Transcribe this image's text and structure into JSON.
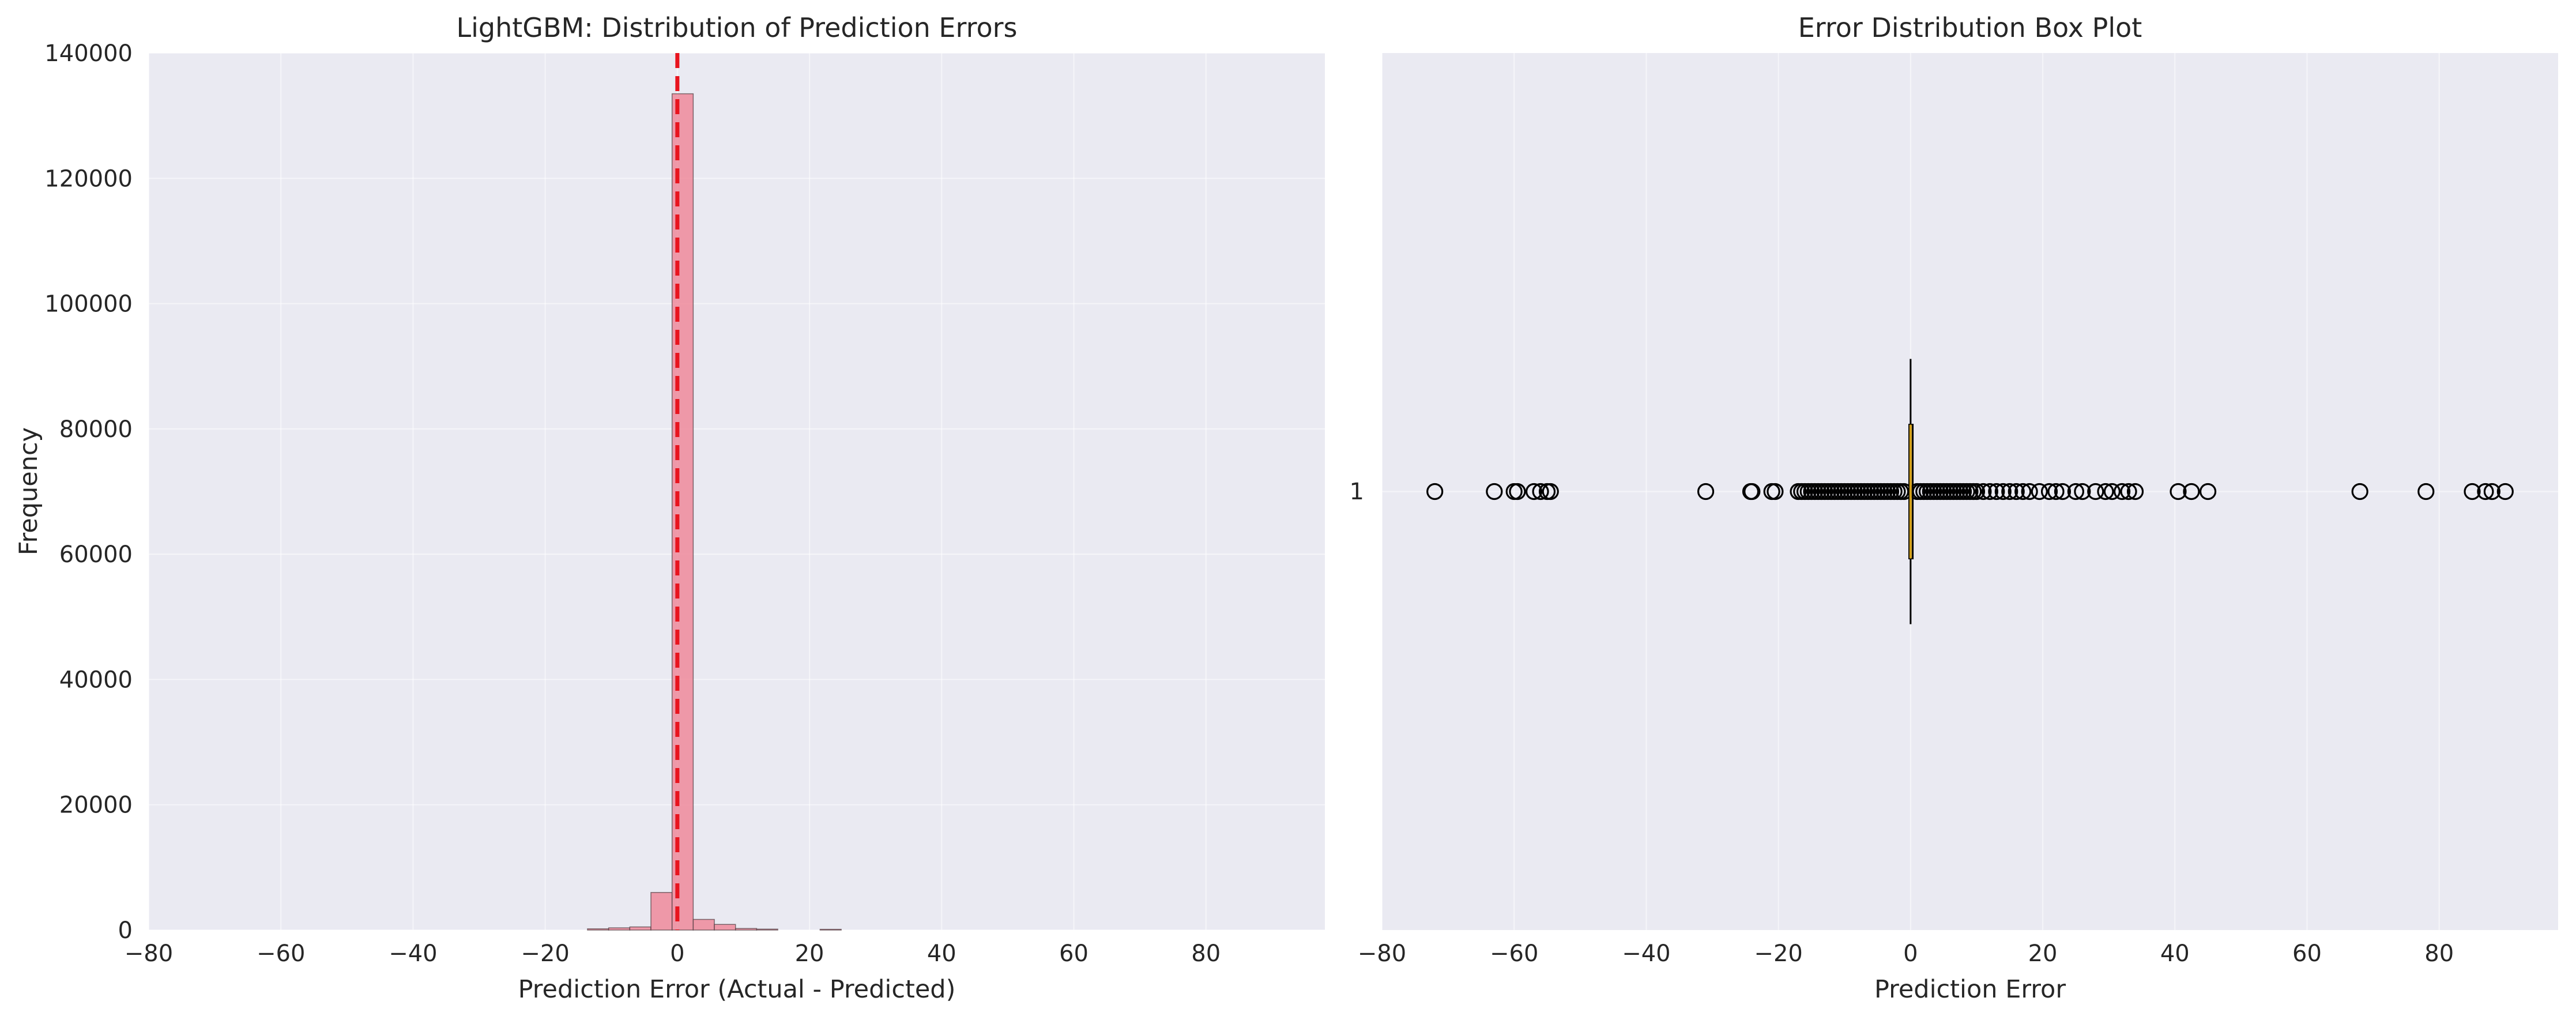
{
  "colors": {
    "panel_bg": "#eaeaf2",
    "bar_fill": "#ef8a9b",
    "zero_line": "#e8141e",
    "median_line": "#d4a017"
  },
  "chart_data": [
    {
      "type": "bar",
      "subtype": "histogram",
      "title": "LightGBM: Distribution of Prediction Errors",
      "xlabel": "Prediction Error (Actual - Predicted)",
      "ylabel": "Frequency",
      "xlim": [
        -80,
        98
      ],
      "ylim": [
        0,
        140000
      ],
      "xticks": [
        "−80",
        "−60",
        "−40",
        "−20",
        "0",
        "20",
        "40",
        "60",
        "80"
      ],
      "xtick_values": [
        -80,
        -60,
        -40,
        -20,
        0,
        20,
        40,
        60,
        80
      ],
      "yticks": [
        "0",
        "20000",
        "40000",
        "60000",
        "80000",
        "100000",
        "120000",
        "140000"
      ],
      "ytick_values": [
        0,
        20000,
        40000,
        60000,
        80000,
        100000,
        120000,
        140000
      ],
      "bins": [
        {
          "x0": -13.6,
          "x1": -10.4,
          "count": 200
        },
        {
          "x0": -10.4,
          "x1": -7.2,
          "count": 350
        },
        {
          "x0": -7.2,
          "x1": -4.0,
          "count": 500
        },
        {
          "x0": -4.0,
          "x1": -0.8,
          "count": 6000
        },
        {
          "x0": -0.8,
          "x1": 2.4,
          "count": 133500
        },
        {
          "x0": 2.4,
          "x1": 5.6,
          "count": 1700
        },
        {
          "x0": 5.6,
          "x1": 8.8,
          "count": 900
        },
        {
          "x0": 8.8,
          "x1": 12.0,
          "count": 250
        },
        {
          "x0": 12.0,
          "x1": 15.2,
          "count": 150
        },
        {
          "x0": 21.6,
          "x1": 24.8,
          "count": 120
        }
      ],
      "reference_line": {
        "x": 0,
        "style": "dashed"
      },
      "grid": true
    },
    {
      "type": "boxplot",
      "orientation": "horizontal",
      "title": "Error Distribution Box Plot",
      "xlabel": "Prediction Error",
      "ylabel": "",
      "xlim": [
        -80,
        98
      ],
      "xticks": [
        "−80",
        "−60",
        "−40",
        "−20",
        "0",
        "20",
        "40",
        "60",
        "80"
      ],
      "xtick_values": [
        -80,
        -60,
        -40,
        -20,
        0,
        20,
        40,
        60,
        80
      ],
      "ytick_label": "1",
      "box": {
        "q1": -0.2,
        "median": 0,
        "q3": 0.2,
        "whisker_low": -0.5,
        "whisker_high": 0.5
      },
      "outliers": [
        -72,
        -63,
        -60,
        -59.5,
        -57,
        -56,
        -55,
        -54.5,
        -31,
        -24.2,
        -24,
        -21,
        -20.5,
        -17,
        -16.5,
        -16,
        -15.5,
        -15,
        -14.5,
        -14,
        -13.5,
        -13,
        -12.5,
        -12,
        -11.5,
        -11,
        -10.5,
        -10,
        -9.5,
        -9,
        -8.5,
        -8,
        -7.5,
        -7,
        -6.5,
        -6,
        -5.5,
        -5,
        -4.5,
        -4,
        -3.5,
        -3,
        -2.5,
        -2,
        -1.5,
        -1,
        1,
        1.5,
        2,
        2.5,
        3,
        3.5,
        4,
        4.5,
        5,
        5.5,
        6,
        6.5,
        7,
        7.5,
        8,
        8.5,
        9,
        9.5,
        10,
        11,
        12,
        13,
        14,
        15,
        16,
        17,
        18,
        19.5,
        21,
        22,
        23,
        25,
        26,
        28,
        29.5,
        30.5,
        32,
        33,
        34,
        40.5,
        42.5,
        45,
        68,
        78,
        85,
        87,
        88,
        90
      ],
      "grid": true
    }
  ]
}
